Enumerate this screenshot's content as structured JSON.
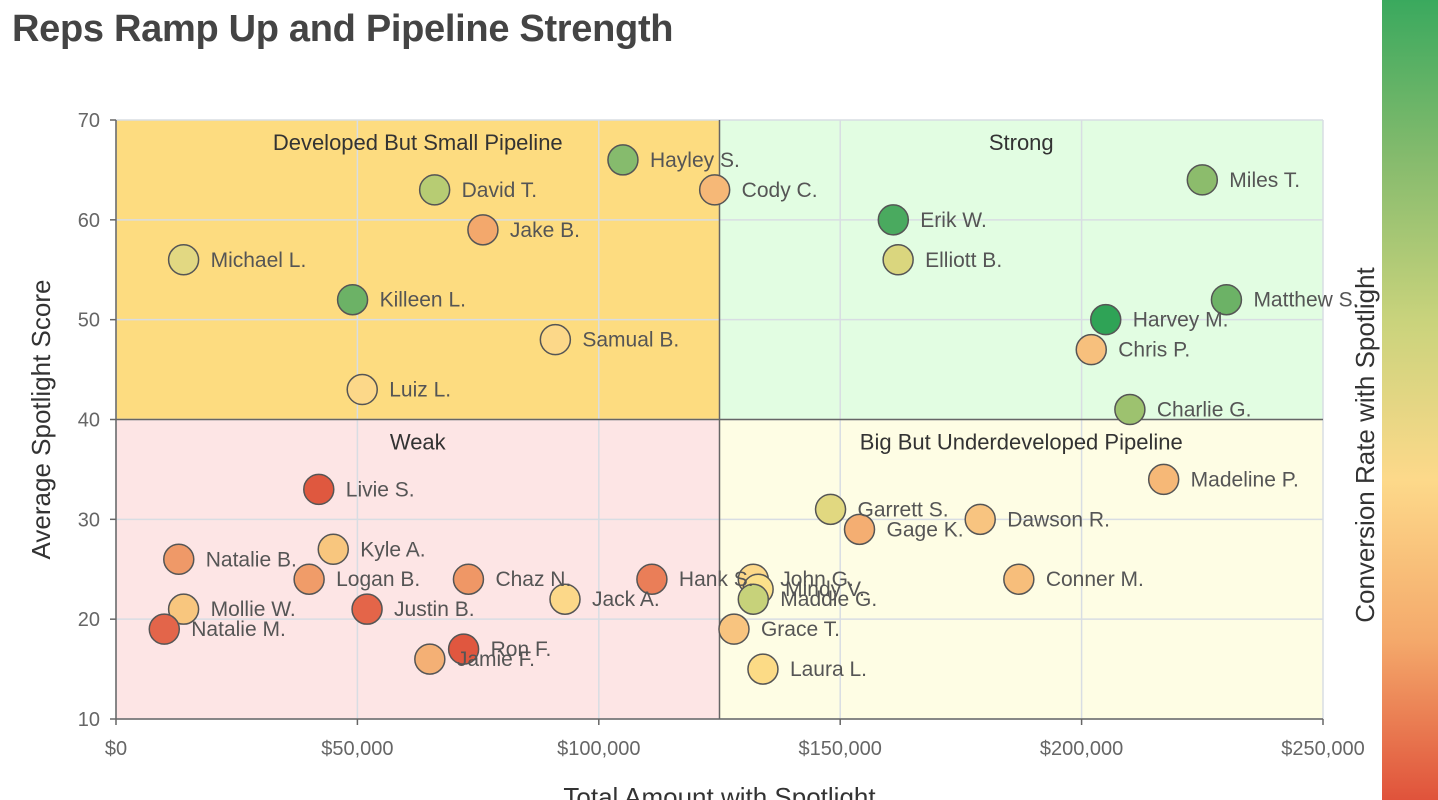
{
  "title": "Reps Ramp Up and Pipeline Strength",
  "chart_data": {
    "type": "scatter",
    "title": "Reps Ramp Up and Pipeline Strength",
    "xlabel": "Total Amount with Spotlight",
    "ylabel": "Average Spotlight Score",
    "colorbar_label": "Conversion Rate with Spotlight",
    "xlim": [
      0,
      250000
    ],
    "ylim": [
      10,
      70
    ],
    "x_ticks": [
      0,
      50000,
      100000,
      150000,
      200000,
      250000
    ],
    "x_tick_labels": [
      "$0",
      "$50,000",
      "$100,000",
      "$150,000",
      "$200,000",
      "$250,000"
    ],
    "y_ticks": [
      10,
      20,
      30,
      40,
      50,
      60,
      70
    ],
    "y_tick_labels": [
      "10",
      "20",
      "30",
      "40",
      "50",
      "60",
      "70"
    ],
    "x_split": 125000,
    "y_split": 40,
    "colorscale": [
      "#e0533b",
      "#f4a96b",
      "#fdd98a",
      "#c9d37c",
      "#86bb6d",
      "#3aa95e"
    ],
    "quadrants": [
      {
        "label": "Developed But Small Pipeline",
        "fill": "#fddc80",
        "xrange": [
          0,
          125000
        ],
        "yrange": [
          40,
          70
        ]
      },
      {
        "label": "Strong",
        "fill": "#e2fde2",
        "xrange": [
          125000,
          250000
        ],
        "yrange": [
          40,
          70
        ]
      },
      {
        "label": "Weak",
        "fill": "#fde5e5",
        "xrange": [
          0,
          125000
        ],
        "yrange": [
          10,
          40
        ]
      },
      {
        "label": "Big But Underdeveloped Pipeline",
        "fill": "#fefde4",
        "xrange": [
          125000,
          250000
        ],
        "yrange": [
          10,
          40
        ]
      }
    ],
    "points": [
      {
        "name": "Hayley S.",
        "x": 105000,
        "y": 66,
        "color": "#86bb6d"
      },
      {
        "name": "David T.",
        "x": 66000,
        "y": 63,
        "color": "#b7cc73"
      },
      {
        "name": "Cody C.",
        "x": 124000,
        "y": 63,
        "color": "#f6b877"
      },
      {
        "name": "Jake B.",
        "x": 76000,
        "y": 59,
        "color": "#f3a86c"
      },
      {
        "name": "Michael L.",
        "x": 14000,
        "y": 56,
        "color": "#e2d882"
      },
      {
        "name": "Killeen L.",
        "x": 49000,
        "y": 52,
        "color": "#6cb266"
      },
      {
        "name": "Samual B.",
        "x": 91000,
        "y": 48,
        "color": "#fcd889"
      },
      {
        "name": "Luiz L.",
        "x": 51000,
        "y": 43,
        "color": "#fcd889"
      },
      {
        "name": "Miles T.",
        "x": 225000,
        "y": 64,
        "color": "#8cbc6c"
      },
      {
        "name": "Erik W.",
        "x": 161000,
        "y": 60,
        "color": "#4aaa5f"
      },
      {
        "name": "Elliott B.",
        "x": 162000,
        "y": 56,
        "color": "#dad67e"
      },
      {
        "name": "Matthew S.",
        "x": 230000,
        "y": 52,
        "color": "#6cb266"
      },
      {
        "name": "Harvey M.",
        "x": 205000,
        "y": 50,
        "color": "#2fa356"
      },
      {
        "name": "Chris P.",
        "x": 202000,
        "y": 47,
        "color": "#f7c07d"
      },
      {
        "name": "Charlie G.",
        "x": 210000,
        "y": 41,
        "color": "#9dc26f"
      },
      {
        "name": "Livie S.",
        "x": 42000,
        "y": 33,
        "color": "#df583f"
      },
      {
        "name": "Natalie B.",
        "x": 13000,
        "y": 26,
        "color": "#ef9968"
      },
      {
        "name": "Kyle A.",
        "x": 45000,
        "y": 27,
        "color": "#f8c67e"
      },
      {
        "name": "Logan B.",
        "x": 40000,
        "y": 24,
        "color": "#f09c69"
      },
      {
        "name": "Chaz N.",
        "x": 73000,
        "y": 24,
        "color": "#ef9766"
      },
      {
        "name": "Hank S.",
        "x": 111000,
        "y": 24,
        "color": "#ea7e58"
      },
      {
        "name": "Mollie W.",
        "x": 14000,
        "y": 21,
        "color": "#f8c67e"
      },
      {
        "name": "Justin B.",
        "x": 52000,
        "y": 21,
        "color": "#e46549"
      },
      {
        "name": "Jack A.",
        "x": 93000,
        "y": 22,
        "color": "#fcd889"
      },
      {
        "name": "Natalie M.",
        "x": 10000,
        "y": 19,
        "color": "#e3654a"
      },
      {
        "name": "Ron F.",
        "x": 72000,
        "y": 17,
        "color": "#e0573f"
      },
      {
        "name": "Jamie F.",
        "x": 65000,
        "y": 16,
        "color": "#f4b075"
      },
      {
        "name": "John G.",
        "x": 132000,
        "y": 24,
        "color": "#fcd889"
      },
      {
        "name": "Mindy V.",
        "x": 133000,
        "y": 23,
        "color": "#fbe08a"
      },
      {
        "name": "Maddie G.",
        "x": 132000,
        "y": 22,
        "color": "#c7d27a"
      },
      {
        "name": "Garrett S.",
        "x": 148000,
        "y": 31,
        "color": "#e1d880"
      },
      {
        "name": "Gage K.",
        "x": 154000,
        "y": 29,
        "color": "#f4ae72"
      },
      {
        "name": "Dawson R.",
        "x": 179000,
        "y": 30,
        "color": "#f8c480"
      },
      {
        "name": "Madeline P.",
        "x": 217000,
        "y": 34,
        "color": "#f6b877"
      },
      {
        "name": "Conner M.",
        "x": 187000,
        "y": 24,
        "color": "#f7be7b"
      },
      {
        "name": "Grace T.",
        "x": 128000,
        "y": 19,
        "color": "#f8c47f"
      },
      {
        "name": "Laura L.",
        "x": 134000,
        "y": 15,
        "color": "#fcdb86"
      }
    ]
  }
}
